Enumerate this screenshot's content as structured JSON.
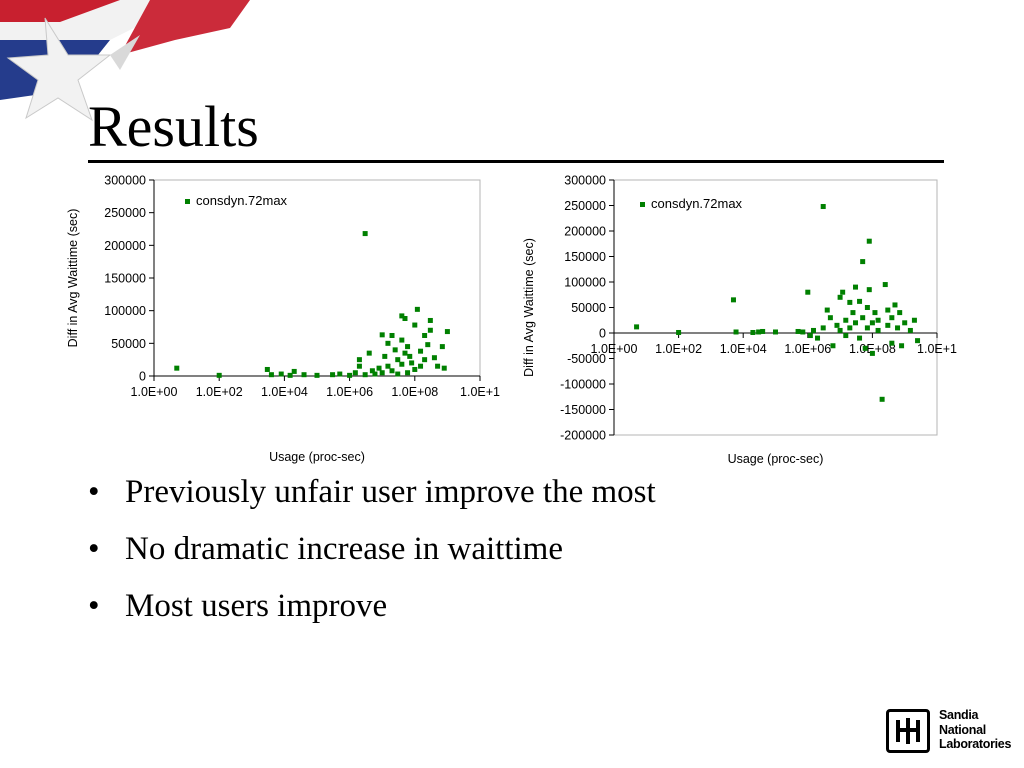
{
  "slide": {
    "title": "Results",
    "bullets": [
      "Previously unfair user improve the most",
      "No dramatic increase in waittime",
      "Most users improve"
    ],
    "logo": {
      "lines": [
        "Sandia",
        "National",
        "Laboratories"
      ]
    },
    "flag_colors": {
      "red": "#c8202f",
      "blue": "#253c8c",
      "white": "#f2f2f2"
    }
  },
  "chart_data": [
    {
      "type": "scatter",
      "xlabel": "Usage (proc-sec)",
      "ylabel": "Diff in Avg Waittime (sec)",
      "xscale": "log",
      "xlim": [
        1,
        10000000000
      ],
      "ylim": [
        0,
        300000
      ],
      "xticks": [
        "1.0E+00",
        "1.0E+02",
        "1.0E+04",
        "1.0E+06",
        "1.0E+08",
        "1.0E+1"
      ],
      "yticks": [
        "0",
        "50000",
        "100000",
        "150000",
        "200000",
        "250000",
        "300000"
      ],
      "grid": false,
      "legend": "top-left",
      "series_color": "#008000",
      "series": [
        {
          "name": "consdyn.72max",
          "points": [
            [
              5,
              12000
            ],
            [
              100,
              1000
            ],
            [
              3000,
              10000
            ],
            [
              4000,
              2000
            ],
            [
              8000,
              3000
            ],
            [
              15000,
              1000
            ],
            [
              20000,
              7000
            ],
            [
              40000,
              2000
            ],
            [
              100000,
              1000
            ],
            [
              300000,
              2000
            ],
            [
              500000,
              3000
            ],
            [
              1000000,
              1000
            ],
            [
              1500000,
              5000
            ],
            [
              2000000,
              15000
            ],
            [
              2000000,
              25000
            ],
            [
              3000000,
              2000
            ],
            [
              3000000,
              218000
            ],
            [
              4000000,
              35000
            ],
            [
              5000000,
              8000
            ],
            [
              6000000,
              3000
            ],
            [
              8000000,
              12000
            ],
            [
              10000000,
              63000
            ],
            [
              10000000,
              5000
            ],
            [
              12000000,
              30000
            ],
            [
              15000000,
              15000
            ],
            [
              15000000,
              50000
            ],
            [
              20000000,
              62000
            ],
            [
              20000000,
              8000
            ],
            [
              25000000,
              40000
            ],
            [
              30000000,
              3000
            ],
            [
              30000000,
              25000
            ],
            [
              40000000,
              55000
            ],
            [
              40000000,
              92000
            ],
            [
              40000000,
              18000
            ],
            [
              50000000,
              35000
            ],
            [
              50000000,
              88000
            ],
            [
              60000000,
              45000
            ],
            [
              60000000,
              5000
            ],
            [
              70000000,
              30000
            ],
            [
              80000000,
              20000
            ],
            [
              100000000,
              78000
            ],
            [
              100000000,
              10000
            ],
            [
              120000000,
              102000
            ],
            [
              150000000,
              38000
            ],
            [
              150000000,
              15000
            ],
            [
              200000000,
              62000
            ],
            [
              200000000,
              25000
            ],
            [
              250000000,
              48000
            ],
            [
              300000000,
              85000
            ],
            [
              300000000,
              70000
            ],
            [
              400000000,
              28000
            ],
            [
              500000000,
              15000
            ],
            [
              700000000,
              45000
            ],
            [
              800000000,
              12000
            ],
            [
              1000000000,
              68000
            ]
          ]
        }
      ]
    },
    {
      "type": "scatter",
      "xlabel": "Usage (proc-sec)",
      "ylabel": "Diff in Avg Waittime (sec)",
      "xscale": "log",
      "xlim": [
        1,
        10000000000
      ],
      "ylim": [
        -200000,
        300000
      ],
      "xticks": [
        "1.0E+00",
        "1.0E+02",
        "1.0E+04",
        "1.0E+06",
        "1.0E+08",
        "1.0E+1"
      ],
      "yticks": [
        "-200000",
        "-150000",
        "-100000",
        "-50000",
        "0",
        "50000",
        "100000",
        "150000",
        "200000",
        "250000",
        "300000"
      ],
      "grid": false,
      "legend": "top-left",
      "series_color": "#008000",
      "series": [
        {
          "name": "consdyn.72max",
          "points": [
            [
              5,
              12000
            ],
            [
              100,
              1000
            ],
            [
              5000,
              65000
            ],
            [
              6000,
              2000
            ],
            [
              20000,
              1000
            ],
            [
              30000,
              2000
            ],
            [
              40000,
              3000
            ],
            [
              100000,
              2000
            ],
            [
              500000,
              3000
            ],
            [
              700000,
              2000
            ],
            [
              1000000,
              80000
            ],
            [
              1200000,
              -5000
            ],
            [
              1500000,
              5000
            ],
            [
              2000000,
              -10000
            ],
            [
              3000000,
              10000
            ],
            [
              3000000,
              248000
            ],
            [
              4000000,
              45000
            ],
            [
              5000000,
              30000
            ],
            [
              6000000,
              -25000
            ],
            [
              8000000,
              15000
            ],
            [
              10000000,
              70000
            ],
            [
              10000000,
              5000
            ],
            [
              12000000,
              80000
            ],
            [
              15000000,
              25000
            ],
            [
              15000000,
              -5000
            ],
            [
              20000000,
              60000
            ],
            [
              20000000,
              10000
            ],
            [
              25000000,
              40000
            ],
            [
              30000000,
              90000
            ],
            [
              30000000,
              20000
            ],
            [
              40000000,
              62000
            ],
            [
              40000000,
              -10000
            ],
            [
              50000000,
              140000
            ],
            [
              50000000,
              30000
            ],
            [
              60000000,
              -30000
            ],
            [
              70000000,
              50000
            ],
            [
              70000000,
              10000
            ],
            [
              80000000,
              180000
            ],
            [
              80000000,
              85000
            ],
            [
              100000000,
              20000
            ],
            [
              100000000,
              -40000
            ],
            [
              120000000,
              40000
            ],
            [
              150000000,
              25000
            ],
            [
              150000000,
              5000
            ],
            [
              200000000,
              -130000
            ],
            [
              250000000,
              95000
            ],
            [
              300000000,
              45000
            ],
            [
              300000000,
              15000
            ],
            [
              400000000,
              30000
            ],
            [
              400000000,
              -20000
            ],
            [
              500000000,
              55000
            ],
            [
              600000000,
              10000
            ],
            [
              700000000,
              40000
            ],
            [
              800000000,
              -25000
            ],
            [
              1000000000,
              20000
            ],
            [
              1500000000,
              5000
            ],
            [
              2000000000,
              25000
            ],
            [
              2500000000,
              -15000
            ]
          ]
        }
      ]
    }
  ]
}
